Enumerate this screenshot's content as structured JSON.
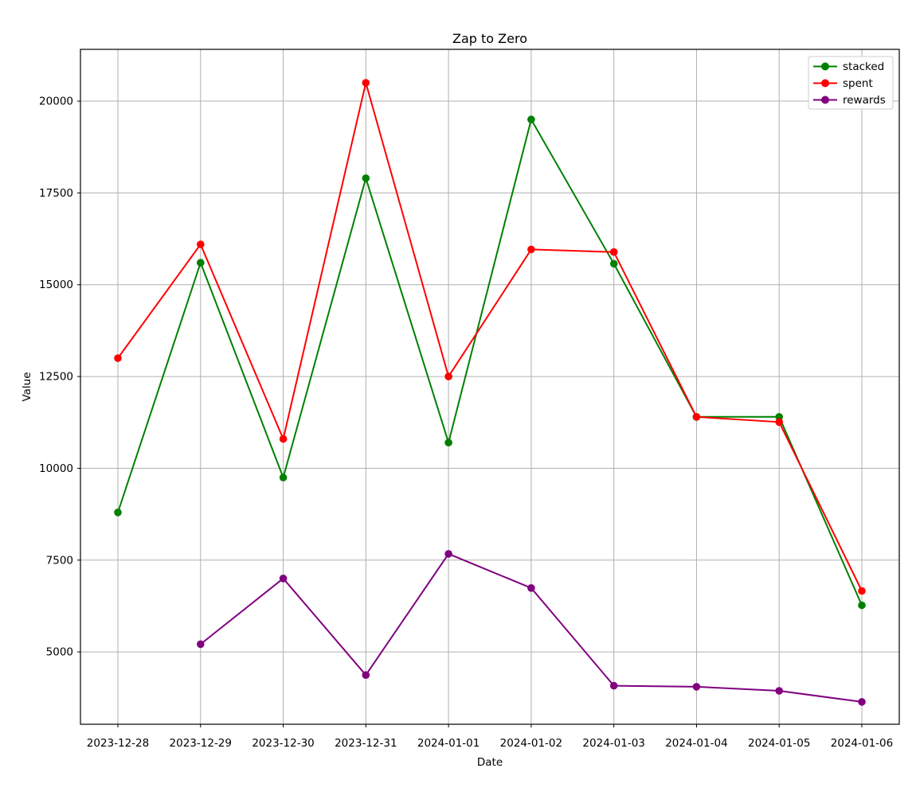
{
  "chart_data": {
    "type": "line",
    "title": "Zap to Zero",
    "xlabel": "Date",
    "ylabel": "Value",
    "categories": [
      "2023-12-28",
      "2023-12-29",
      "2023-12-30",
      "2023-12-31",
      "2024-01-01",
      "2024-01-02",
      "2024-01-03",
      "2024-01-04",
      "2024-01-05",
      "2024-01-06"
    ],
    "series": [
      {
        "name": "stacked",
        "color": "#008000",
        "values": [
          8800,
          15600,
          9750,
          17900,
          10700,
          19500,
          15570,
          11400,
          11400,
          6270
        ]
      },
      {
        "name": "spent",
        "color": "#ff0000",
        "values": [
          13000,
          16100,
          10800,
          20500,
          12500,
          15960,
          15890,
          11400,
          11260,
          6660
        ]
      },
      {
        "name": "rewards",
        "color": "#800080",
        "values": [
          null,
          5210,
          7000,
          4370,
          7670,
          6740,
          4080,
          4050,
          3940,
          3640
        ]
      }
    ],
    "y_ticks": [
      5000,
      7500,
      10000,
      12500,
      15000,
      17500,
      20000
    ],
    "ylim": [
      3030,
      21410
    ],
    "grid": true,
    "grid_color": "#b0b0b0",
    "legend_position": "upper right",
    "legend_border_color": "#cccccc",
    "background": "#ffffff",
    "marker": "circle",
    "line_width": 2
  }
}
